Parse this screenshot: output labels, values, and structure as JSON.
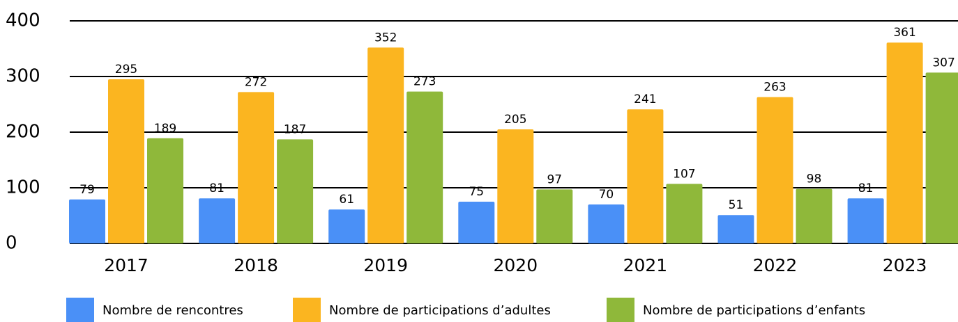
{
  "chart_data": {
    "type": "bar",
    "categories": [
      "2017",
      "2018",
      "2019",
      "2020",
      "2021",
      "2022",
      "2023"
    ],
    "series": [
      {
        "name": "Nombre de rencontres",
        "color": "#4a90f7",
        "values": [
          79,
          81,
          61,
          75,
          70,
          51,
          81
        ]
      },
      {
        "name": "Nombre de participations d’adultes",
        "color": "#fbb520",
        "values": [
          295,
          272,
          352,
          205,
          241,
          263,
          361
        ]
      },
      {
        "name": "Nombre de participations d’enfants",
        "color": "#8fb83a",
        "values": [
          189,
          187,
          273,
          97,
          107,
          98,
          307
        ]
      }
    ],
    "ylim": [
      0,
      400
    ],
    "yticks": [
      0,
      100,
      200,
      300,
      400
    ],
    "grid": true,
    "legend": "bottom"
  }
}
